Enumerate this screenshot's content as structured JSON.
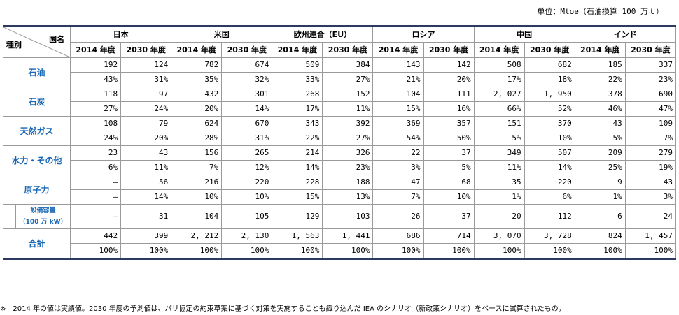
{
  "unit_label": "単位：Mtoe（石油換算 100 万ｔ）",
  "header": {
    "corner_country": "国名",
    "corner_type": "種別",
    "countries": [
      "日本",
      "米国",
      "欧州連合（EU）",
      "ロシア",
      "中国",
      "インド"
    ],
    "years": [
      "2014 年度",
      "2030 年度"
    ]
  },
  "rows": [
    {
      "category": "石油",
      "values": [
        "192",
        "124",
        "782",
        "674",
        "509",
        "384",
        "143",
        "142",
        "508",
        "682",
        "185",
        "337"
      ],
      "shares": [
        "43%",
        "31%",
        "35%",
        "32%",
        "33%",
        "27%",
        "21%",
        "20%",
        "17%",
        "18%",
        "22%",
        "23%"
      ]
    },
    {
      "category": "石炭",
      "values": [
        "118",
        "97",
        "432",
        "301",
        "268",
        "152",
        "104",
        "111",
        "2, 027",
        "1, 950",
        "378",
        "690"
      ],
      "shares": [
        "27%",
        "24%",
        "20%",
        "14%",
        "17%",
        "11%",
        "15%",
        "16%",
        "66%",
        "52%",
        "46%",
        "47%"
      ]
    },
    {
      "category": "天然ガス",
      "values": [
        "108",
        "79",
        "624",
        "670",
        "343",
        "392",
        "369",
        "357",
        "151",
        "370",
        "43",
        "109"
      ],
      "shares": [
        "24%",
        "20%",
        "28%",
        "31%",
        "22%",
        "27%",
        "54%",
        "50%",
        "5%",
        "10%",
        "5%",
        "7%"
      ]
    },
    {
      "category": "水力・その他",
      "values": [
        "23",
        "43",
        "156",
        "265",
        "214",
        "326",
        "22",
        "37",
        "349",
        "507",
        "209",
        "279"
      ],
      "shares": [
        "6%",
        "11%",
        "7%",
        "12%",
        "14%",
        "23%",
        "3%",
        "5%",
        "11%",
        "14%",
        "25%",
        "19%"
      ]
    },
    {
      "category": "原子力",
      "values": [
        "–",
        "56",
        "216",
        "220",
        "228",
        "188",
        "47",
        "68",
        "35",
        "220",
        "9",
        "43"
      ],
      "shares": [
        "–",
        "14%",
        "10%",
        "10%",
        "15%",
        "13%",
        "7%",
        "10%",
        "1%",
        "6%",
        "1%",
        "3%"
      ]
    }
  ],
  "capacity": {
    "label_line1": "設備容量",
    "label_line2": "（100 万 kW）",
    "values": [
      "–",
      "31",
      "104",
      "105",
      "129",
      "103",
      "26",
      "37",
      "20",
      "112",
      "6",
      "24"
    ]
  },
  "total": {
    "category": "合計",
    "values": [
      "442",
      "399",
      "2, 212",
      "2, 130",
      "1, 563",
      "1, 441",
      "686",
      "714",
      "3, 070",
      "3, 728",
      "824",
      "1, 457"
    ],
    "shares": [
      "100%",
      "100%",
      "100%",
      "100%",
      "100%",
      "100%",
      "100%",
      "100%",
      "100%",
      "100%",
      "100%",
      "100%"
    ]
  },
  "footnote": "※　2014 年の値は実績値。2030 年度の予測値は、パリ協定の約束草案に基づく対策を実施することも織り込んだ IEA のシナリオ（新政策シナリオ）をベースに試算されたもの。",
  "colors": {
    "category_text": "#1a67b5",
    "rule": "#2b3a5e",
    "grid": "#9a9a9a"
  }
}
